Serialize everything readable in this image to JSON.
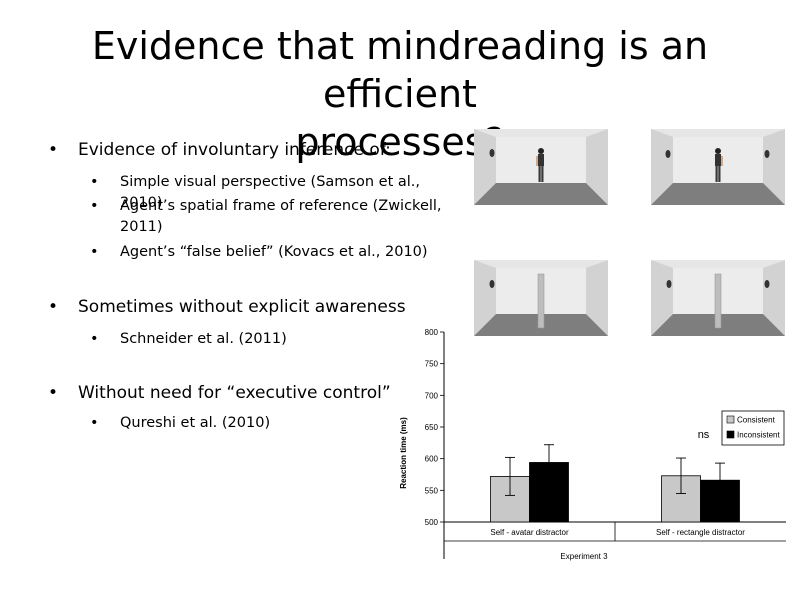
{
  "slide": {
    "title_line1": "Evidence that mindreading is an efficient",
    "title_line2": "processes?"
  },
  "bullets": [
    {
      "text": "Evidence of involuntary inference of:",
      "sub": [
        "Simple visual perspective (Samson et al., 2010)",
        "Agent’s spatial frame of reference (Zwickell, 2011)",
        "Agent’s “false belief” (Kovacs et al., 2010)"
      ]
    },
    {
      "text": "Sometimes without explicit awareness",
      "sub": [
        "Schneider et al. (2011)"
      ]
    },
    {
      "text": "Without need for “executive control”",
      "sub": [
        "Qureshi et al. (2010)"
      ]
    }
  ],
  "stimuli": [
    {
      "object": "avatar",
      "facing": "left"
    },
    {
      "object": "avatar",
      "facing": "right"
    },
    {
      "object": "rectangle"
    },
    {
      "object": "rectangle"
    }
  ],
  "chart_data": {
    "type": "bar",
    "categories": [
      "Self - avatar distractor",
      "Self - rectangle distractor"
    ],
    "series": [
      {
        "name": "Consistent",
        "color": "#c8c8c8",
        "values": [
          572,
          573
        ],
        "error": [
          30,
          28
        ]
      },
      {
        "name": "Inconsistent",
        "color": "#000000",
        "values": [
          594,
          566
        ],
        "error": [
          28,
          27
        ]
      }
    ],
    "xlabel": "Experiment 3",
    "ylabel": "Reaction time (ms)",
    "ylim": [
      500,
      800
    ],
    "yticks": [
      500,
      550,
      600,
      650,
      700,
      750,
      800
    ],
    "annotations": [
      {
        "category": 1,
        "text": "ns"
      }
    ],
    "legend": "right",
    "grid": false
  }
}
